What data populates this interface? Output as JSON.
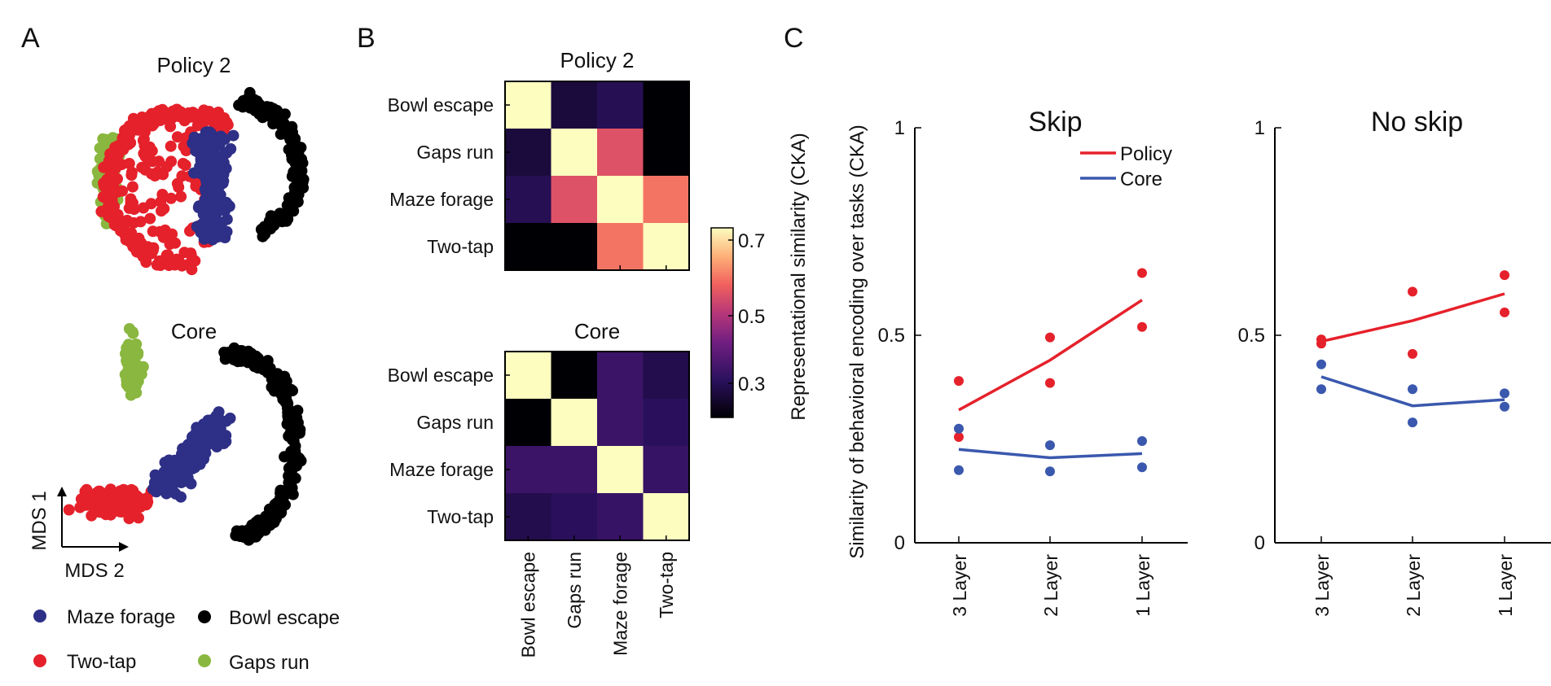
{
  "panels": {
    "A": {
      "label": "A",
      "top_title": "Policy 2",
      "bottom_title": "Core",
      "axis_label_1": "MDS 1",
      "axis_label_2": "MDS 2",
      "legend": [
        {
          "name": "Maze forage",
          "color": "#2e2f86"
        },
        {
          "name": "Bowl escape",
          "color": "#000000"
        },
        {
          "name": "Two-tap",
          "color": "#e5212b"
        },
        {
          "name": "Gaps run",
          "color": "#8ab73f"
        }
      ]
    },
    "B": {
      "label": "B",
      "colorbar_ticks": [
        "0.7",
        "0.5",
        "0.3"
      ]
    },
    "C": {
      "label": "C"
    }
  },
  "chart_data": [
    {
      "type": "scatter",
      "title": "Policy 2",
      "description_only_in_title": false,
      "series": [
        {
          "name": "Maze forage",
          "color": "#2e2f86"
        },
        {
          "name": "Bowl escape",
          "color": "#000000"
        },
        {
          "name": "Two-tap",
          "color": "#e5212b"
        },
        {
          "name": "Gaps run",
          "color": "#8ab73f"
        }
      ]
    },
    {
      "type": "scatter",
      "title": "Core",
      "series": [
        {
          "name": "Maze forage",
          "color": "#2e2f86"
        },
        {
          "name": "Bowl escape",
          "color": "#000000"
        },
        {
          "name": "Two-tap",
          "color": "#e5212b"
        },
        {
          "name": "Gaps run",
          "color": "#8ab73f"
        }
      ]
    },
    {
      "type": "heatmap",
      "title": "Policy 2",
      "rows": [
        "Bowl escape",
        "Gaps run",
        "Maze forage",
        "Two-tap"
      ],
      "cols": [
        "Bowl escape",
        "Gaps run",
        "Maze forage",
        "Two-tap"
      ],
      "values": [
        [
          0.75,
          0.25,
          0.28,
          0.18
        ],
        [
          0.25,
          0.75,
          0.55,
          0.18
        ],
        [
          0.28,
          0.55,
          0.75,
          0.6
        ],
        [
          0.18,
          0.18,
          0.6,
          0.75
        ]
      ],
      "clim": [
        0.18,
        0.75
      ]
    },
    {
      "type": "heatmap",
      "title": "Core",
      "rows": [
        "Bowl escape",
        "Gaps run",
        "Maze forage",
        "Two-tap"
      ],
      "cols": [
        "Bowl escape",
        "Gaps run",
        "Maze forage",
        "Two-tap"
      ],
      "values": [
        [
          0.75,
          0.18,
          0.32,
          0.27
        ],
        [
          0.18,
          0.75,
          0.32,
          0.29
        ],
        [
          0.32,
          0.32,
          0.75,
          0.31
        ],
        [
          0.27,
          0.29,
          0.31,
          0.75
        ]
      ],
      "clim": [
        0.18,
        0.75
      ]
    },
    {
      "type": "line",
      "title": "Skip",
      "ylabel": "Representational similarity (CKA)",
      "ylabel2": "Similarity of behavioral encoding over tasks (CKA)",
      "categories": [
        "3 Layer",
        "2 Layer",
        "1 Layer"
      ],
      "ylim": [
        0,
        1
      ],
      "yticks": [
        "0",
        "0.5",
        "1"
      ],
      "series": [
        {
          "name": "Policy",
          "color": "#e5212b",
          "values": [
            0.32,
            0.44,
            0.585
          ],
          "points": [
            [
              0.39,
              0.255
            ],
            [
              0.495,
              0.385
            ],
            [
              0.65,
              0.52
            ]
          ]
        },
        {
          "name": "Core",
          "color": "#3a58ad",
          "values": [
            0.225,
            0.205,
            0.215
          ],
          "points": [
            [
              0.275,
              0.175
            ],
            [
              0.235,
              0.172
            ],
            [
              0.245,
              0.182
            ]
          ]
        }
      ]
    },
    {
      "type": "line",
      "title": "No skip",
      "categories": [
        "3 Layer",
        "2 Layer",
        "1 Layer"
      ],
      "ylim": [
        0,
        1
      ],
      "yticks": [
        "0",
        "0.5",
        "1"
      ],
      "series": [
        {
          "name": "Policy",
          "color": "#e5212b",
          "values": [
            0.485,
            0.535,
            0.6
          ],
          "points": [
            [
              0.49,
              0.48
            ],
            [
              0.605,
              0.455
            ],
            [
              0.645,
              0.555
            ]
          ]
        },
        {
          "name": "Core",
          "color": "#3a58ad",
          "values": [
            0.4,
            0.33,
            0.345
          ],
          "points": [
            [
              0.43,
              0.37
            ],
            [
              0.37,
              0.29
            ],
            [
              0.36,
              0.328
            ]
          ]
        }
      ]
    }
  ]
}
